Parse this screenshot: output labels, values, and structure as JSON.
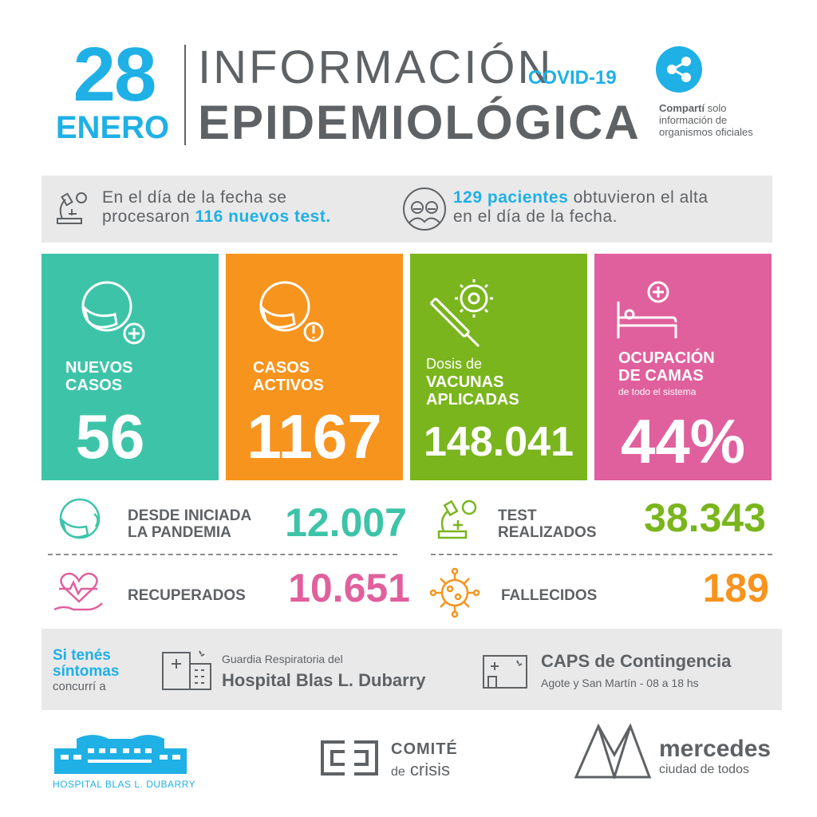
{
  "header": {
    "day": "28",
    "month": "ENERO",
    "title_top": "INFORMACIÓN",
    "title_tag": "COVID-19",
    "title_bottom": "EPIDEMIOLÓGICA",
    "share_bold": "Compartí",
    "share_rest_1": " solo",
    "share_line_2": "información de",
    "share_line_3": "organismos oficiales"
  },
  "info": {
    "tests_line1": "En el día de la fecha se",
    "tests_pre": "procesaron ",
    "tests_highlight": "116 nuevos test.",
    "alta_highlight": "129 pacientes",
    "alta_rest": " obtuvieron el alta",
    "alta_line2": "en el día de la fecha."
  },
  "cards": {
    "nuevos": {
      "label_1": "NUEVOS",
      "label_2": "CASOS",
      "value": "56",
      "color": "#3dc4a8"
    },
    "activos": {
      "label_1": "CASOS",
      "label_2": "ACTIVOS",
      "value": "1167",
      "color": "#f7941d"
    },
    "vacunas": {
      "label_pre": "Dosis de",
      "label_1": "VACUNAS",
      "label_2": "APLICADAS",
      "value": "148.041",
      "color": "#7ab51d"
    },
    "camas": {
      "label_1": "OCUPACIÓN",
      "label_2": "DE CAMAS",
      "label_sub": "de todo el sistema",
      "value": "44%",
      "color": "#e0609d"
    }
  },
  "stats": {
    "pandemia": {
      "label_1": "DESDE INICIADA",
      "label_2": "LA PANDEMIA",
      "value": "12.007",
      "color": "#3dc4a8"
    },
    "test": {
      "label_1": "TEST",
      "label_2": "REALIZADOS",
      "value": "38.343",
      "color": "#7ab51d"
    },
    "recuperados": {
      "label": "RECUPERADOS",
      "value": "10.651",
      "color": "#e0609d"
    },
    "fallecidos": {
      "label": "FALLECIDOS",
      "value": "189",
      "color": "#f7941d"
    }
  },
  "footer_band": {
    "sint_1": "Si tenés",
    "sint_2": "síntomas",
    "concurri": "concurrí a",
    "guardia_label": "Guardia Respiratoria del",
    "hospital_name": "Hospital Blas L. Dubarry",
    "caps_title": "CAPS de Contingencia",
    "caps_sub": "Agote y San Martín - 08 a 18 hs"
  },
  "logos": {
    "hospital": "HOSPITAL BLAS L. DUBARRY",
    "comite_1": "COMITÉ",
    "comite_2_pre": "de",
    "comite_2": "crisis",
    "mercedes": "mercedes",
    "mercedes_sub": "ciudad de todos"
  },
  "colors": {
    "blue": "#1fb0e6",
    "gray": "#5f6265",
    "band": "#e9e9ea"
  },
  "icons": [
    "share-icon",
    "microscope-icon",
    "doctors-icon",
    "masked-face-plus-icon",
    "masked-face-alert-icon",
    "syringe-virus-icon",
    "hospital-bed-icon",
    "masked-face-icon",
    "microscope-small-icon",
    "heart-hand-icon",
    "virus-icon",
    "hospital-building-icon",
    "clinic-building-icon"
  ]
}
